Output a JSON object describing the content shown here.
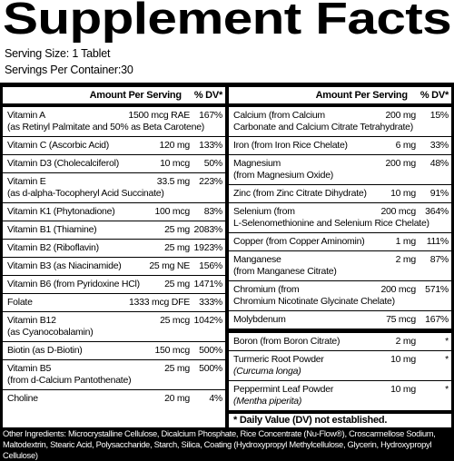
{
  "header": {
    "title": "Supplement Facts",
    "serving_size": "Serving Size: 1 Tablet",
    "servings_per_container": "Servings Per Container:30"
  },
  "panels": [
    {
      "headers": [
        "Amount Per Serving",
        "% DV*"
      ],
      "rows": [
        {
          "name": "Vitamin A",
          "amount": "1500 mcg RAE",
          "dv": "167%",
          "detail": "(as Retinyl Palmitate and 50% as Beta Carotene)"
        },
        {
          "name": "Vitamin C (Ascorbic Acid)",
          "amount": "120 mg",
          "dv": "133%"
        },
        {
          "name": "Vitamin D3 (Cholecalciferol)",
          "amount": "10 mcg",
          "dv": "50%"
        },
        {
          "name": "Vitamin E",
          "amount": "33.5 mg",
          "dv": "223%",
          "detail": "(as d-alpha-Tocopheryl Acid Succinate)"
        },
        {
          "name": "Vitamin K1 (Phytonadione)",
          "amount": "100 mcg",
          "dv": "83%"
        },
        {
          "name": "Vitamin B1 (Thiamine)",
          "amount": "25 mg",
          "dv": "2083%"
        },
        {
          "name": "Vitamin B2 (Riboflavin)",
          "amount": "25 mg",
          "dv": "1923%"
        },
        {
          "name": "Vitamin B3 (as Niacinamide)",
          "amount": "25 mg NE",
          "dv": "156%"
        },
        {
          "name": "Vitamin B6 (from Pyridoxine HCl)",
          "amount": "25 mg",
          "dv": "1471%"
        },
        {
          "name": "Folate",
          "amount": "1333 mcg DFE",
          "dv": "333%"
        },
        {
          "name": "Vitamin B12",
          "amount": "25 mcg",
          "dv": "1042%",
          "detail": "(as Cyanocobalamin)"
        },
        {
          "name": "Biotin (as D-Biotin)",
          "amount": "150 mcg",
          "dv": "500%"
        },
        {
          "name": "Vitamin B5",
          "amount": "25 mg",
          "dv": "500%",
          "detail": "(from d-Calcium Pantothenate)"
        },
        {
          "name": "Choline",
          "amount": "20 mg",
          "dv": "4%"
        }
      ]
    },
    {
      "headers": [
        "Amount Per Serving",
        "% DV*"
      ],
      "rows": [
        {
          "name": "Calcium (from Calcium",
          "amount": "200 mg",
          "dv": "15%",
          "detail": "Carbonate and Calcium Citrate Tetrahydrate)"
        },
        {
          "name": "Iron (from Iron Rice Chelate)",
          "amount": "6 mg",
          "dv": "33%"
        },
        {
          "name": "Magnesium",
          "amount": "200 mg",
          "dv": "48%",
          "detail": "(from Magnesium Oxide)"
        },
        {
          "name": "Zinc (from Zinc Citrate Dihydrate)",
          "amount": "10 mg",
          "dv": "91%"
        },
        {
          "name": "Selenium (from",
          "amount": "200 mcg",
          "dv": "364%",
          "detail": "L-Selenomethionine and Selenium Rice Chelate)"
        },
        {
          "name": "Copper (from Copper Aminomin)",
          "amount": "1 mg",
          "dv": "111%"
        },
        {
          "name": "Manganese",
          "amount": "2 mg",
          "dv": "87%",
          "detail": "(from Manganese Citrate)"
        },
        {
          "name": "Chromium (from",
          "amount": "200 mcg",
          "dv": "571%",
          "detail": "Chromium Nicotinate Glycinate Chelate)"
        },
        {
          "name": "Molybdenum",
          "amount": "75 mcg",
          "dv": "167%"
        }
      ],
      "extra_rows": [
        {
          "name": "Boron (from Boron Citrate)",
          "amount": "2 mg",
          "dv": "*"
        },
        {
          "name": "Turmeric Root Powder",
          "amount": "10 mg",
          "dv": "*",
          "detail": "(Curcuma longa)"
        },
        {
          "name": "Peppermint Leaf Powder",
          "amount": "10 mg",
          "dv": "*",
          "detail": "(Mentha piperita)"
        }
      ],
      "footnote": "* Daily Value (DV) not established."
    }
  ],
  "other_ingredients": "Other Ingredients: Microcrystalline Cellulose, Dicalcium Phosphate, Rice Concentrate (Nu-Flow®), Croscarmellose Sodium, Maltodextrin, Stearic Acid, Polysaccharide, Starch, Silica, Coating (Hydroxypropyl Methylcellulose, Glycerin, Hydroxypropyl Cellulose)"
}
